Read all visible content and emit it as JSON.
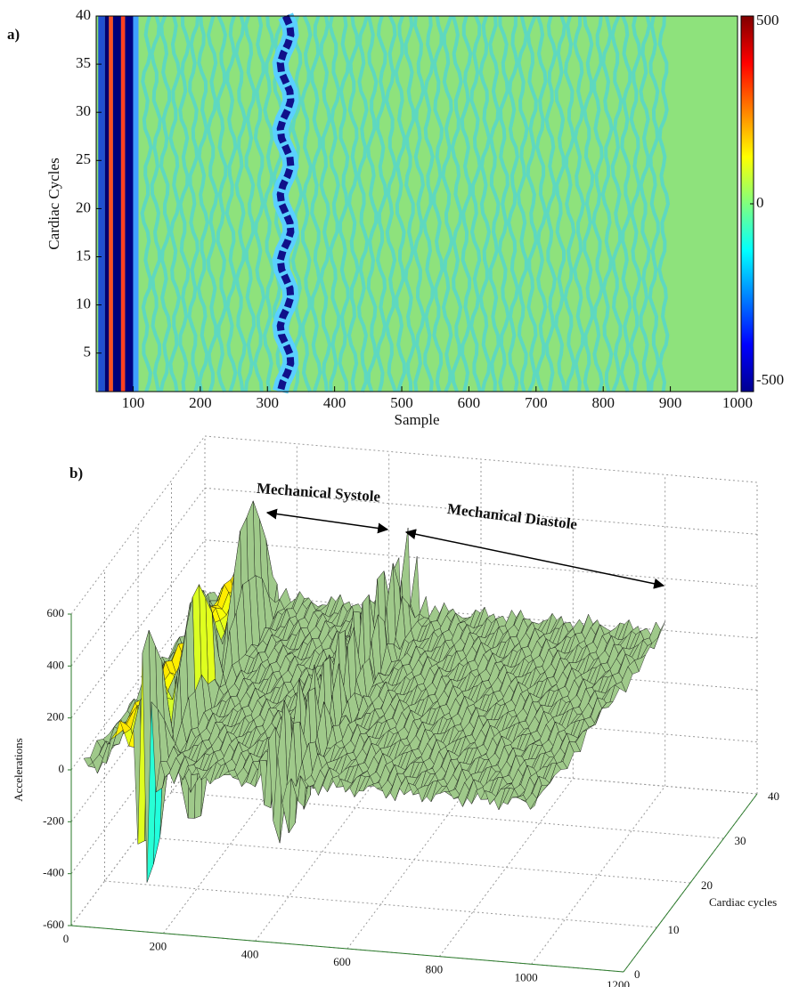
{
  "chart_data": [
    {
      "type": "contour",
      "panel_label": "a)",
      "xlabel": "Sample",
      "ylabel": "Cardiac Cycles",
      "xlim": [
        45,
        1000
      ],
      "xticks": [
        100,
        200,
        300,
        400,
        500,
        600,
        700,
        800,
        900,
        1000
      ],
      "ylim": [
        1,
        40
      ],
      "yticks": [
        5,
        10,
        15,
        20,
        25,
        30,
        35,
        40
      ],
      "colorbar": {
        "lim": [
          -500,
          500
        ],
        "ticks": [
          -500,
          0,
          500
        ]
      }
    },
    {
      "type": "surface3d",
      "panel_label": "b)",
      "zlabel": "Accelerations",
      "ylabel": "Cardiac cycles",
      "xlim": [
        0,
        1200
      ],
      "xticks": [
        0,
        200,
        400,
        600,
        800,
        1000,
        1200
      ],
      "ylim": [
        0,
        40
      ],
      "yticks": [
        0,
        10,
        20,
        30,
        40
      ],
      "zlim": [
        -600,
        600
      ],
      "zticks": [
        -600,
        -400,
        -200,
        0,
        200,
        400,
        600
      ],
      "grid": true,
      "annotations": [
        {
          "text": "Mechanical Systole"
        },
        {
          "text": "Mechanical Diastole"
        }
      ]
    }
  ]
}
